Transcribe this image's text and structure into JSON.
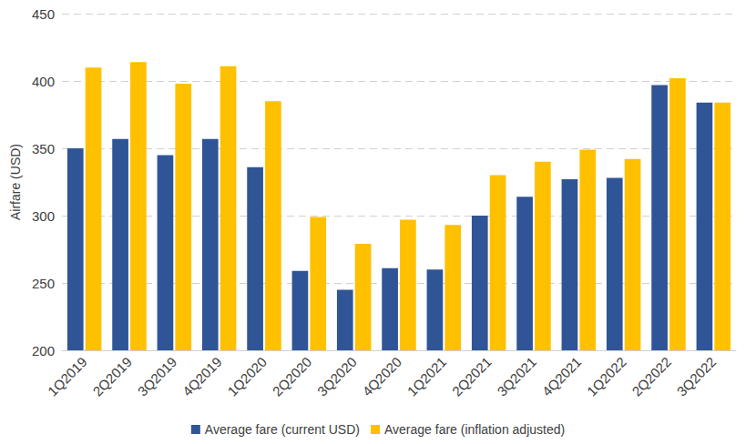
{
  "chart_data": {
    "type": "bar",
    "y_label": "Airfare (USD)",
    "categories": [
      "1Q2019",
      "2Q2019",
      "3Q2019",
      "4Q2019",
      "1Q2020",
      "2Q2020",
      "3Q2020",
      "4Q2020",
      "1Q2021",
      "2Q2021",
      "3Q2021",
      "4Q2021",
      "1Q2022",
      "2Q2022",
      "3Q2022"
    ],
    "series": [
      {
        "name": "Average fare (current USD)",
        "color": "#2f5597",
        "values": [
          350,
          357,
          345,
          357,
          336,
          259,
          245,
          261,
          260,
          300,
          314,
          327,
          328,
          397,
          384
        ]
      },
      {
        "name": "Average fare (inflation adjusted)",
        "color": "#ffc000",
        "values": [
          410,
          414,
          398,
          411,
          385,
          299,
          279,
          297,
          293,
          330,
          340,
          349,
          342,
          402,
          384
        ]
      }
    ],
    "ylim": [
      200,
      450
    ],
    "yticks": [
      200,
      250,
      300,
      350,
      400,
      450
    ],
    "grid": true,
    "legend": "bottom"
  }
}
